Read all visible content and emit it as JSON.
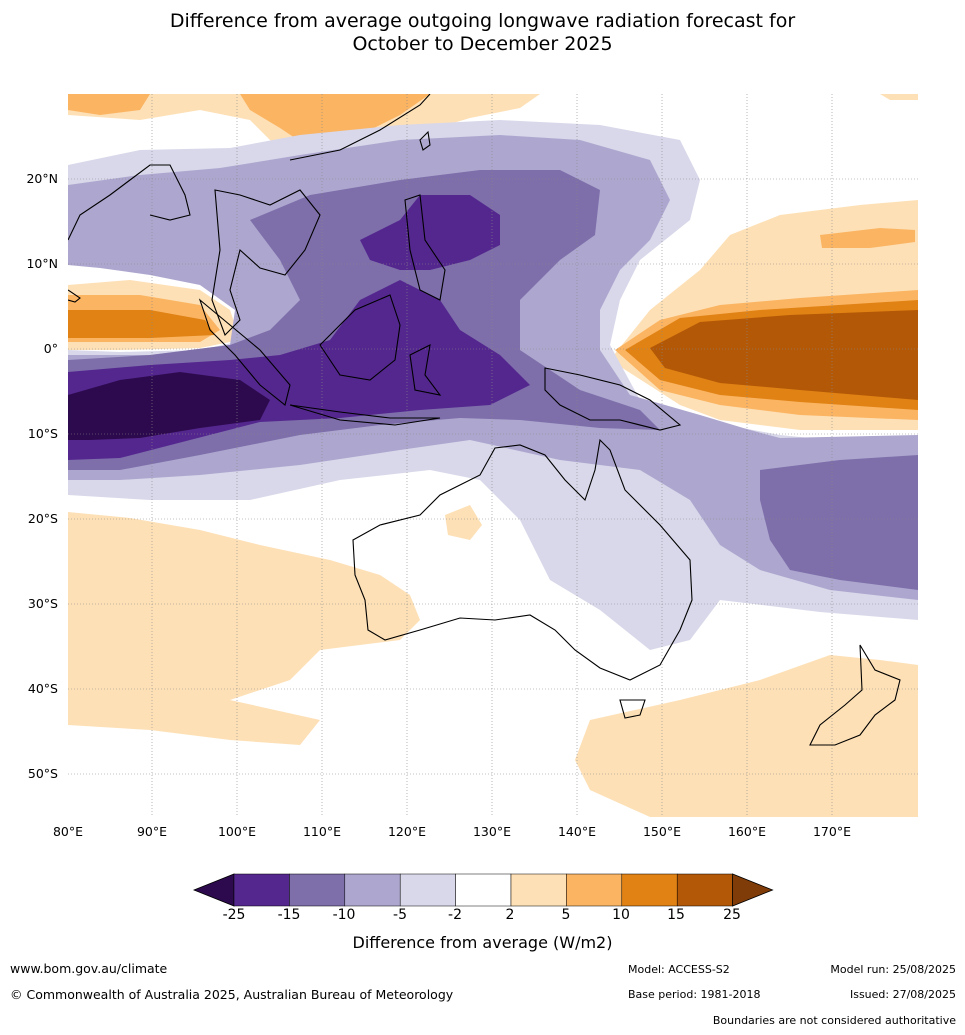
{
  "title": {
    "line1": "Difference from average outgoing longwave radiation forecast for",
    "line2": "October to December 2025"
  },
  "map": {
    "lat_labels": [
      "20°N",
      "10°N",
      "0°",
      "10°S",
      "20°S",
      "30°S",
      "40°S",
      "50°S"
    ],
    "lon_labels": [
      "80°E",
      "90°E",
      "100°E",
      "110°E",
      "120°E",
      "130°E",
      "140°E",
      "150°E",
      "160°E",
      "170°E"
    ],
    "extent": {
      "lon": [
        80,
        180
      ],
      "lat": [
        -55,
        30
      ]
    },
    "grid": true
  },
  "colorbar": {
    "ticks": [
      "-25",
      "-15",
      "-10",
      "-5",
      "-2",
      "2",
      "5",
      "10",
      "15",
      "25"
    ],
    "colors": [
      "#2d0a4e",
      "#54278f",
      "#7e6faa",
      "#ada7cf",
      "#d8d8ea",
      "#ffffff",
      "#fde0b6",
      "#fbb462",
      "#e08214",
      "#b35806",
      "#7f3b08"
    ],
    "label": "Difference from average (W/m2)"
  },
  "footer": {
    "website": "www.bom.gov.au/climate",
    "copyright": "© Commonwealth of Australia 2025, Australian Bureau of Meteorology",
    "model": "Model: ACCESS-S2",
    "base_period": "Base period: 1981-2018",
    "model_run": "Model run: 25/08/2025",
    "issued": "Issued: 27/08/2025",
    "disclaimer": "Boundaries are not considered authoritative"
  }
}
